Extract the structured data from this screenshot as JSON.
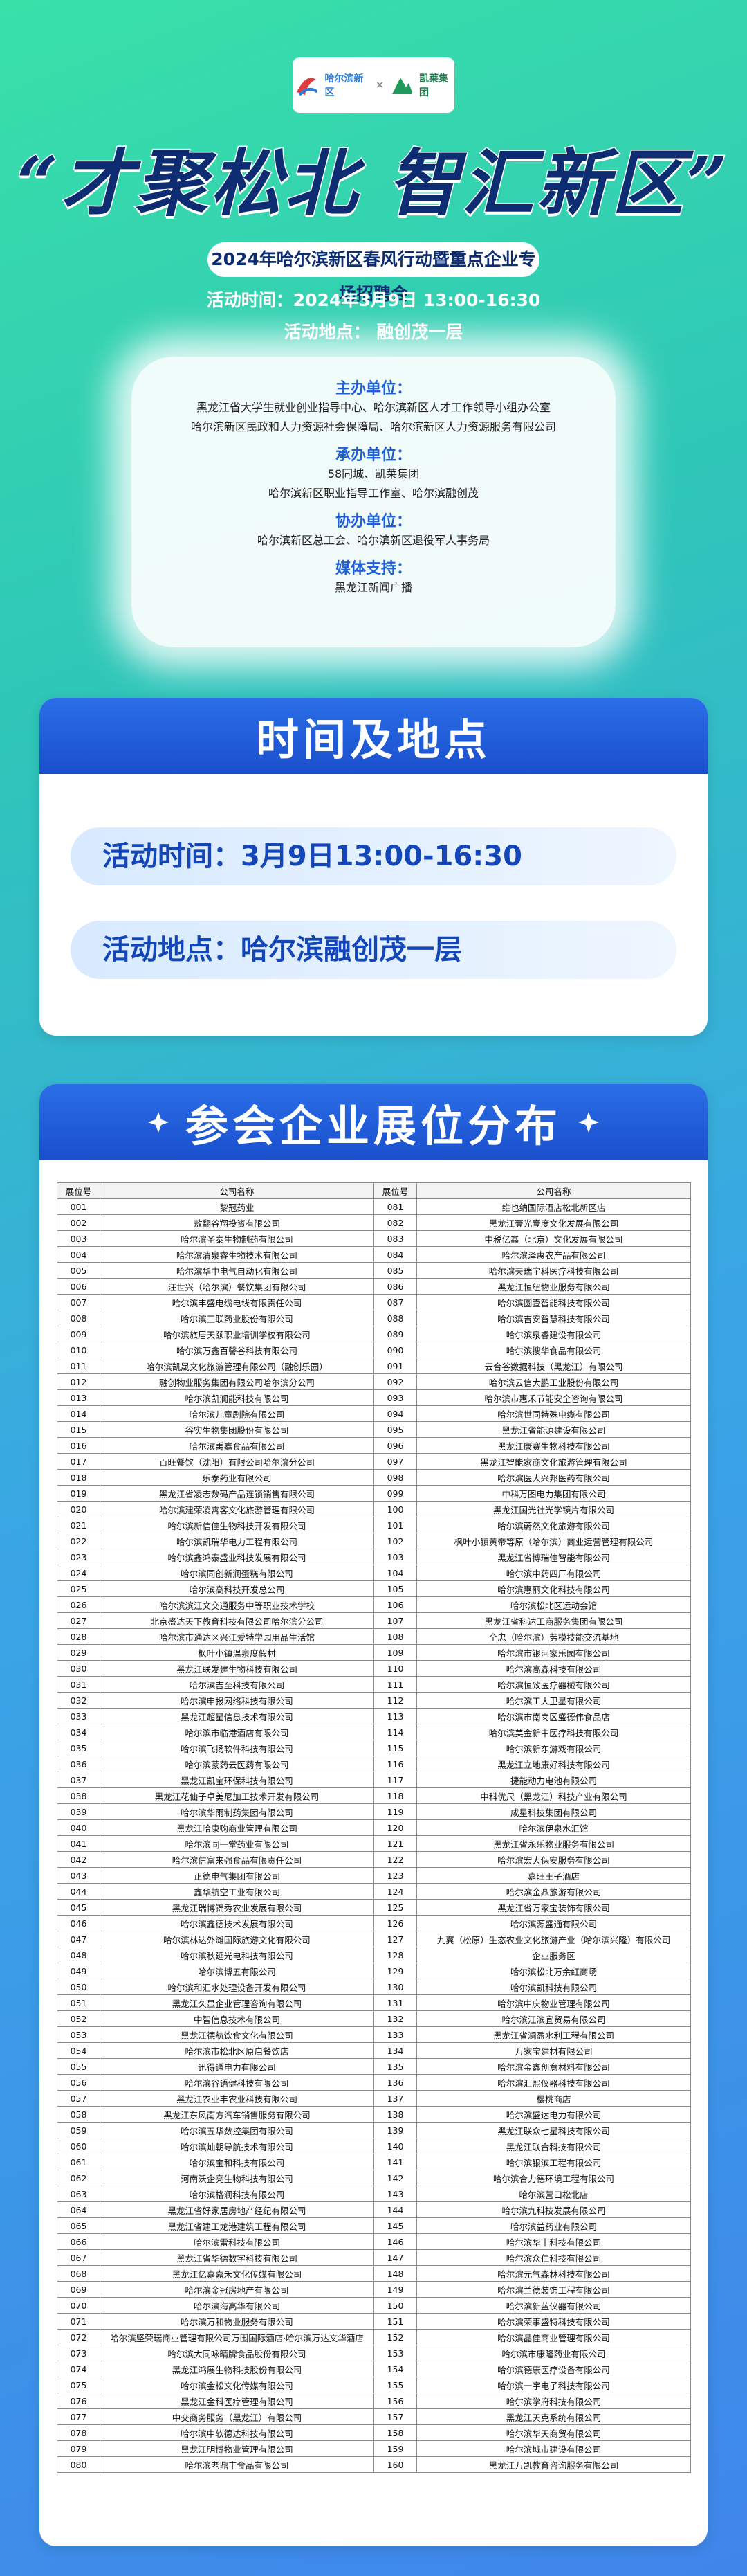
{
  "header": {
    "logo_left": "哈尔滨新区",
    "logo_cross": "×",
    "logo_right": "凯莱集团",
    "title": "“才聚松北 智汇新区”",
    "banner": "2024年哈尔滨新区春风行动暨重点企业专场招聘会",
    "time": "活动时间：2024年3月9日 13:00-16:30",
    "location": "活动地点： 融创茂一层"
  },
  "organizers": [
    {
      "role": "主办单位：",
      "names": [
        "黑龙江省大学生就业创业指导中心、哈尔滨新区人才工作领导小组办公室",
        "哈尔滨新区民政和人力资源社会保障局、哈尔滨新区人力资源服务有限公司"
      ]
    },
    {
      "role": "承办单位：",
      "names": [
        "58同城、凯莱集团",
        "哈尔滨新区职业指导工作室、哈尔滨融创茂"
      ]
    },
    {
      "role": "协办单位：",
      "names": [
        "哈尔滨新区总工会、哈尔滨新区退役军人事务局"
      ]
    },
    {
      "role": "媒体支持：",
      "names": [
        "黑龙江新闻广播"
      ]
    }
  ],
  "section1": {
    "title": "时间及地点",
    "time": "活动时间：3月9日13:00-16:30",
    "location": "活动地点：哈尔滨融创茂一层"
  },
  "section2": {
    "title": "参会企业展位分布"
  },
  "table": {
    "columns": [
      "展位号",
      "公司名称",
      "展位号",
      "公司名称"
    ],
    "rows": [
      [
        "001",
        "黎冠药业",
        "081",
        "维也纳国际酒店松北新区店"
      ],
      [
        "002",
        "敖翻谷翔投资有限公司",
        "082",
        "黑龙江壹光壹度文化发展有限公司"
      ],
      [
        "003",
        "哈尔滨圣泰生物制药有限公司",
        "083",
        "中税亿鑫（北京）文化发展有限公司"
      ],
      [
        "004",
        "哈尔滨清泉睿生物技术有限公司",
        "084",
        "哈尔滨泽惠农产品有限公司"
      ],
      [
        "005",
        "哈尔滨华中电气自动化有限公司",
        "085",
        "哈尔滨天瑞宇科医疗科技有限公司"
      ],
      [
        "006",
        "汪世兴（哈尔滨）餐饮集团有限公司",
        "086",
        "黑龙江恒纽物业服务有限公司"
      ],
      [
        "007",
        "哈尔滨丰盛电缆电线有限责任公司",
        "087",
        "哈尔滨圆壹智能科技有限公司"
      ],
      [
        "008",
        "哈尔滨三联药业股份有限公司",
        "088",
        "哈尔滨吉安智慧科技有限公司"
      ],
      [
        "009",
        "哈尔滨旅居天颐职业培训学校有限公司",
        "089",
        "哈尔滨泉睿建设有限公司"
      ],
      [
        "010",
        "哈尔滨万鑫百馨谷科技有限公司",
        "090",
        "哈尔滨搜华食品有限公司"
      ],
      [
        "011",
        "哈尔滨凯晟文化旅游管理有限公司（融创乐园）",
        "091",
        "云合谷数据科技（黑龙江）有限公司"
      ],
      [
        "012",
        "融创物业服务集团有限公司哈尔滨分公司",
        "092",
        "哈尔滨云信大鹏工业股份有限公司"
      ],
      [
        "013",
        "哈尔滨凯润能科技有限公司",
        "093",
        "哈尔滨市惠禾节能安全咨询有限公司"
      ],
      [
        "014",
        "哈尔滨儿童剧院有限公司",
        "094",
        "哈尔滨世同特殊电缆有限公司"
      ],
      [
        "015",
        "谷实生物集团股份有限公司",
        "095",
        "黑龙江省能源建设有限公司"
      ],
      [
        "016",
        "哈尔滨禹鑫食品有限公司",
        "096",
        "黑龙江康赛生物科技有限公司"
      ],
      [
        "017",
        "百旺餐饮（沈阳）有限公司哈尔滨分公司",
        "097",
        "黑龙江智能家商文化旅游管理有限公司"
      ],
      [
        "018",
        "乐泰药业有限公司",
        "098",
        "哈尔滨医大兴邦医药有限公司"
      ],
      [
        "019",
        "黑龙江省凌志数码产品连锁销售有限公司",
        "099",
        "中科万图电力集团有限公司"
      ],
      [
        "020",
        "哈尔滨建荣凌霄客文化旅游管理有限公司",
        "100",
        "黑龙江国光社光学镜片有限公司"
      ],
      [
        "021",
        "哈尔滨新信佳生物科技开发有限公司",
        "101",
        "哈尔滨蔚然文化旅游有限公司"
      ],
      [
        "022",
        "哈尔滨凯瑞华电力工程有限公司",
        "102",
        "枫叶小镇黄帝等原（哈尔滨）商业运营管理有限公司"
      ],
      [
        "023",
        "哈尔滨鑫鸿泰盛业科技发展有限公司",
        "103",
        "黑龙江省博瑞佳智能有限公司"
      ],
      [
        "024",
        "哈尔滨同创新润蛋糕有限公司",
        "104",
        "哈尔滨中药四厂有限公司"
      ],
      [
        "025",
        "哈尔滨高科技开发总公司",
        "105",
        "哈尔滨惠丽文化科技有限公司"
      ],
      [
        "026",
        "哈尔滨滨江文交通服务中等职业技术学校",
        "106",
        "哈尔滨松北区运动会馆"
      ],
      [
        "027",
        "北京盛达天下教育科技有限公司哈尔滨分公司",
        "107",
        "黑龙江省科达工商服务集团有限公司"
      ],
      [
        "028",
        "哈尔滨市通达区兴江爱特学园用品生活馆",
        "108",
        "全忠（哈尔滨）劳模技能交流基地"
      ],
      [
        "029",
        "枫叶小镇温泉度假村",
        "109",
        "哈尔滨市银河家乐园有限公司"
      ],
      [
        "030",
        "黑龙江联发建生物科技有限公司",
        "110",
        "哈尔滨高森科技有限公司"
      ],
      [
        "031",
        "哈尔滨吉至科技有限公司",
        "111",
        "哈尔滨恒致医疗器械有限公司"
      ],
      [
        "032",
        "哈尔滨申报网络科技有限公司",
        "112",
        "哈尔滨工大卫星有限公司"
      ],
      [
        "033",
        "黑龙江超星信息技术有限公司",
        "113",
        "哈尔滨市南岗区盛德伟食品店"
      ],
      [
        "034",
        "哈尔滨市临港酒店有限公司",
        "114",
        "哈尔滨美金新中医疗科技有限公司"
      ],
      [
        "035",
        "哈尔滨飞扬软件科技有限公司",
        "115",
        "哈尔滨新东游戏有限公司"
      ],
      [
        "036",
        "哈尔滨蒙药云医药有限公司",
        "116",
        "黑龙江立地康好科技有限公司"
      ],
      [
        "037",
        "黑龙江凯宝环保科技有限公司",
        "117",
        "捷能动力电池有限公司"
      ],
      [
        "038",
        "黑龙江花仙子卓美尼加工技术开发有限公司",
        "118",
        "中科优尺（黑龙江）科技产业有限公司"
      ],
      [
        "039",
        "哈尔滨华雨制药集团有限公司",
        "119",
        "成星科技集团有限公司"
      ],
      [
        "040",
        "黑龙江哈康购商业管理有限公司",
        "120",
        "哈尔滨伊泉水汇馆"
      ],
      [
        "041",
        "哈尔滨同一堂药业有限公司",
        "121",
        "黑龙江省永乐物业服务有限公司"
      ],
      [
        "042",
        "哈尔滨信富来强食品有限责任公司",
        "122",
        "哈尔滨宏大保安服务有限公司"
      ],
      [
        "043",
        "正德电气集团有限公司",
        "123",
        "嘉旺王子酒店"
      ],
      [
        "044",
        "鑫华航空工业有限公司",
        "124",
        "哈尔滨金鼎旅游有限公司"
      ],
      [
        "045",
        "黑龙江瑞博锦秀农业发展有限公司",
        "125",
        "黑龙江省万家宝装饰有限公司"
      ],
      [
        "046",
        "哈尔滨鑫德技术发展有限公司",
        "126",
        "哈尔滨源盛通有限公司"
      ],
      [
        "047",
        "哈尔滨林达外滩国际旅游文化有限公司",
        "127",
        "九翼（松原）生态农业文化旅游产业（哈尔滨兴隆）有限公司"
      ],
      [
        "048",
        "哈尔滨秋延光电科技有限公司",
        "128",
        "企业服务区"
      ],
      [
        "049",
        "哈尔滨博五有限公司",
        "129",
        "哈尔滨松北万余红商场"
      ],
      [
        "050",
        "哈尔滨和汇水处理设备开发有限公司",
        "130",
        "哈尔滨凯科技有限公司"
      ],
      [
        "051",
        "黑龙江久显企业管理咨询有限公司",
        "131",
        "哈尔滨中庆物业管理有限公司"
      ],
      [
        "052",
        "中智信息技术有限公司",
        "132",
        "哈尔滨江滨宜贸易有限公司"
      ],
      [
        "053",
        "黑龙江德航饮食文化有限公司",
        "133",
        "黑龙江省澜盈水利工程有限公司"
      ],
      [
        "054",
        "哈尔滨市松北区原启餐饮店",
        "134",
        "万家宝建材有限公司"
      ],
      [
        "055",
        "迅得通电力有限公司",
        "135",
        "哈尔滨金鑫创意材料有限公司"
      ],
      [
        "056",
        "哈尔滨谷语健科技有限公司",
        "136",
        "哈尔滨汇熙仪器科技有限公司"
      ],
      [
        "057",
        "黑龙江农业丰农业科技有限公司",
        "137",
        "樱桃商店"
      ],
      [
        "058",
        "黑龙江东风南方汽车销售服务有限公司",
        "138",
        "哈尔滨盛达电力有限公司"
      ],
      [
        "059",
        "哈尔滨五华数控集团有限公司",
        "139",
        "黑龙江联众七星科技有限公司"
      ],
      [
        "060",
        "哈尔滨灿朝导航技术有限公司",
        "140",
        "黑龙江联合科技有限公司"
      ],
      [
        "061",
        "哈尔滨宝和科技有限公司",
        "141",
        "哈尔滨银滨工程有限公司"
      ],
      [
        "062",
        "河南沃企亮生物科技有限公司",
        "142",
        "哈尔滨合力德环境工程有限公司"
      ],
      [
        "063",
        "哈尔滨格润科技有限公司",
        "143",
        "哈尔滨营口松北店"
      ],
      [
        "064",
        "黑龙江省好家居房地产经纪有限公司",
        "144",
        "哈尔滨九科技发展有限公司"
      ],
      [
        "065",
        "黑龙江省建工龙港建筑工程有限公司",
        "145",
        "哈尔滨益药业有限公司"
      ],
      [
        "066",
        "哈尔滨雷科技有限公司",
        "146",
        "哈尔滨华丰科技有限公司"
      ],
      [
        "067",
        "黑龙江省华德数字科技有限公司",
        "147",
        "哈尔滨众仁科技有限公司"
      ],
      [
        "068",
        "黑龙江亿嘉嘉禾文化传媒有限公司",
        "148",
        "哈尔滨元气森林科技有限公司"
      ],
      [
        "069",
        "哈尔滨金冠房地产有限公司",
        "149",
        "哈尔滨兰德装饰工程有限公司"
      ],
      [
        "070",
        "哈尔滨海高华有限公司",
        "150",
        "哈尔滨新蓝仪器有限公司"
      ],
      [
        "071",
        "哈尔滨万和物业服务有限公司",
        "151",
        "哈尔滨荣事盛特科技有限公司"
      ],
      [
        "072",
        "哈尔滨坚荣瑞商业管理有限公司万围国际酒店·哈尔滨万达文华酒店",
        "152",
        "哈尔滨晶佳商业管理有限公司"
      ],
      [
        "073",
        "哈尔滨大同咏晴牌食品股份有限公司",
        "153",
        "哈尔滨市康隆药业有限公司"
      ],
      [
        "074",
        "黑龙江鸿展生物科技股份有限公司",
        "154",
        "哈尔滨德康医疗设备有限公司"
      ],
      [
        "075",
        "哈尔滨金松文化传媒有限公司",
        "155",
        "哈尔滨一宇电子科技有限公司"
      ],
      [
        "076",
        "黑龙江金科医疗管理有限公司",
        "156",
        "哈尔滨学府科技有限公司"
      ],
      [
        "077",
        "中交商务服务（黑龙江）有限公司",
        "157",
        "黑龙江天克系统有限公司"
      ],
      [
        "078",
        "哈尔滨中软德达科技有限公司",
        "158",
        "哈尔滨华天商贸有限公司"
      ],
      [
        "079",
        "黑龙江明博物业管理有限公司",
        "159",
        "哈尔滨城市建设有限公司"
      ],
      [
        "080",
        "哈尔滨老鼎丰食品有限公司",
        "160",
        "黑龙江万凯教育咨询服务有限公司"
      ]
    ]
  }
}
